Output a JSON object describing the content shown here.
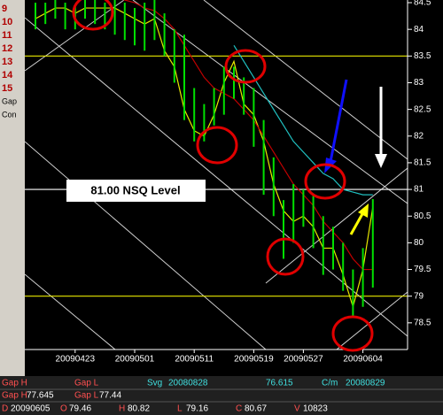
{
  "chart_data": {
    "type": "range-bar",
    "categories": [
      null,
      null,
      null,
      null,
      "20090423",
      null,
      null,
      null,
      null,
      null,
      "20090501",
      null,
      null,
      null,
      null,
      null,
      "20090511",
      null,
      null,
      null,
      null,
      null,
      "20090519",
      null,
      null,
      null,
      null,
      "20090527",
      null,
      null,
      null,
      null,
      null,
      "20090604",
      null
    ],
    "high": [
      84.5,
      84.5,
      84.6,
      84.5,
      84.45,
      84.6,
      84.6,
      84.5,
      84.6,
      84.5,
      84.4,
      84.5,
      84.6,
      84.3,
      84.0,
      83.9,
      82.9,
      82.6,
      82.9,
      83.3,
      83.3,
      83.1,
      82.9,
      82.3,
      81.6,
      80.8,
      81.1,
      81.0,
      80.9,
      80.5,
      80.3,
      80.0,
      79.5,
      79.9,
      80.82
    ],
    "low": [
      84.0,
      84.1,
      84.2,
      84.0,
      84.0,
      84.2,
      84.1,
      84.0,
      83.9,
      83.8,
      83.7,
      83.6,
      83.8,
      83.5,
      83.0,
      82.3,
      81.9,
      81.9,
      82.2,
      82.4,
      82.7,
      82.4,
      81.8,
      80.9,
      80.5,
      79.7,
      80.0,
      80.3,
      79.9,
      79.4,
      79.5,
      79.1,
      78.6,
      78.8,
      79.16
    ],
    "bar_color": "#00e000",
    "series": [
      {
        "color": "#e8e800",
        "values": [
          84.2,
          84.3,
          84.4,
          84.4,
          84.3,
          84.4,
          84.4,
          84.4,
          84.4,
          84.3,
          84.2,
          84.1,
          84.2,
          83.6,
          83.3,
          82.5,
          82.1,
          82.0,
          82.4,
          83.0,
          83.4,
          82.6,
          82.4,
          81.9,
          81.1,
          80.6,
          80.4,
          80.5,
          80.3,
          79.9,
          79.9,
          79.4,
          78.8,
          79.5,
          80.67
        ]
      },
      {
        "color": "#c00000",
        "values": [
          84.8,
          84.8,
          84.8,
          84.75,
          84.7,
          84.7,
          84.7,
          84.65,
          84.6,
          84.55,
          84.5,
          84.4,
          84.35,
          84.2,
          84.0,
          83.7,
          83.4,
          83.1,
          82.9,
          82.8,
          82.7,
          82.5,
          82.3,
          82.0,
          81.7,
          81.4,
          81.1,
          80.9,
          80.7,
          80.4,
          80.2,
          80.0,
          79.7,
          79.5,
          79.5
        ]
      },
      {
        "color": "#20c0c0",
        "values": [
          null,
          null,
          null,
          null,
          null,
          null,
          null,
          null,
          null,
          null,
          null,
          null,
          null,
          null,
          null,
          null,
          null,
          null,
          null,
          null,
          83.7,
          83.4,
          83.1,
          82.8,
          82.5,
          82.2,
          81.9,
          81.7,
          81.5,
          81.3,
          81.2,
          81.0,
          80.95,
          80.9,
          80.9
        ]
      }
    ],
    "levels": [
      {
        "value": 83.5,
        "color": "#e8e800"
      },
      {
        "value": 81,
        "color": "#ffffff"
      },
      {
        "value": 79,
        "color": "#e8e800"
      }
    ],
    "annotation": "81.00 NSQ Level",
    "ylim": [
      78.0,
      84.55
    ],
    "yticks": [
      84.5,
      84,
      83.5,
      83,
      82.5,
      82,
      81.5,
      81,
      80.5,
      80,
      79.5,
      79,
      78.5
    ]
  },
  "left_labels": [
    "9",
    "10",
    "11",
    "12",
    "13",
    "14",
    "15",
    "Gap",
    "Con"
  ],
  "status_bar": {
    "row1": [
      "Gap H",
      "Gap L",
      "Svg",
      "20080828",
      "76.615",
      "C/m",
      "20080829"
    ],
    "row2": [
      [
        "Gap H",
        "77.645"
      ],
      [
        "Gap L",
        "77.44"
      ]
    ],
    "row3": [
      [
        "D",
        "20090605"
      ],
      [
        "O",
        "79.46"
      ],
      [
        "H",
        "80.82"
      ],
      [
        "L",
        "79.16"
      ],
      [
        "C",
        "80.67"
      ],
      [
        "V",
        "10823"
      ]
    ]
  }
}
